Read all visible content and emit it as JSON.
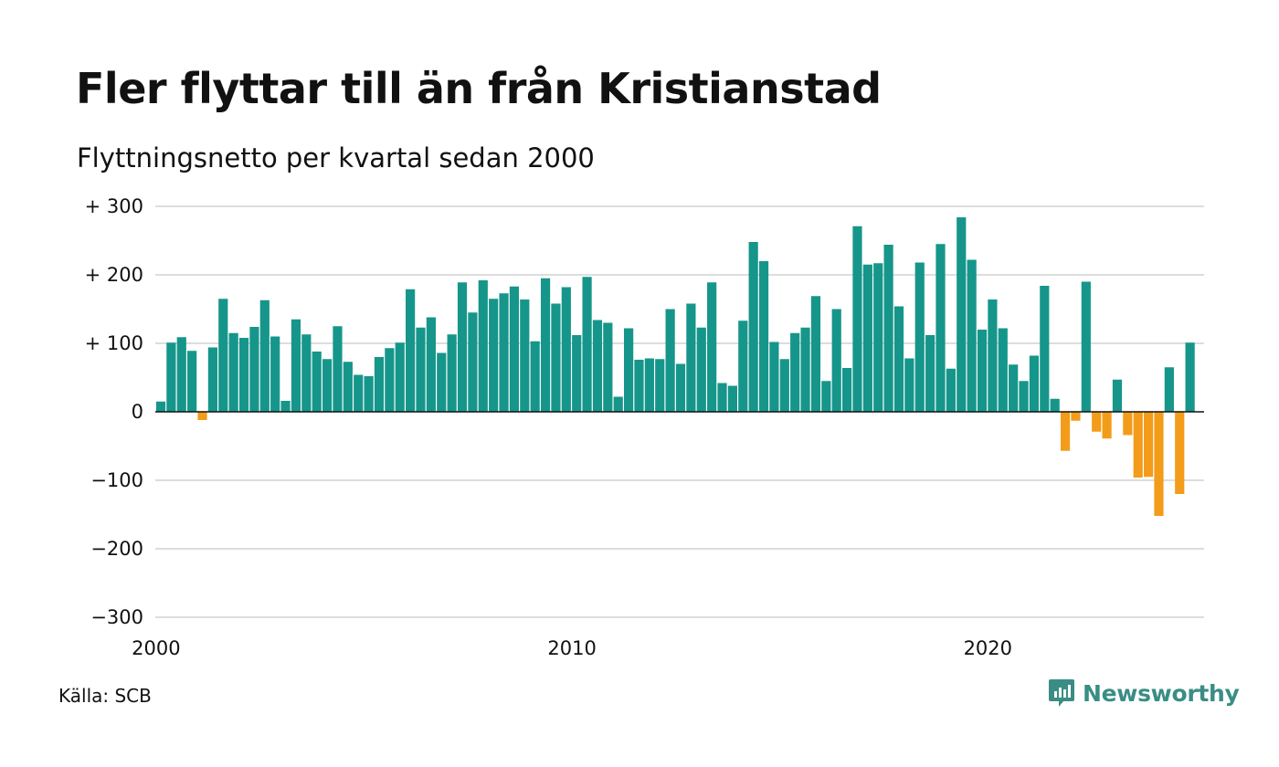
{
  "header": {
    "title": "Fler flyttar till än från Kristianstad",
    "subtitle": "Flyttningsnetto per kvartal sedan 2000"
  },
  "footer": {
    "source": "Källa: SCB",
    "brand": "Newsworthy"
  },
  "colors": {
    "positive": "#16968a",
    "negative": "#f39c1a",
    "grid": "#dddddd",
    "zero_line": "#111111",
    "brand": "#3a8d84"
  },
  "chart_data": {
    "type": "bar",
    "x_start": "2000 Q1",
    "ylim": [
      -300,
      300
    ],
    "grid": true,
    "y_ticks": [
      {
        "value": 300,
        "label": "+ 300"
      },
      {
        "value": 200,
        "label": "+ 200"
      },
      {
        "value": 100,
        "label": "+ 100"
      },
      {
        "value": 0,
        "label": "0"
      },
      {
        "value": -100,
        "label": "−100"
      },
      {
        "value": -200,
        "label": "−200"
      },
      {
        "value": -300,
        "label": "−300"
      }
    ],
    "x_ticks": [
      {
        "year": 2000,
        "label": "2000"
      },
      {
        "year": 2010,
        "label": "2010"
      },
      {
        "year": 2020,
        "label": "2020"
      }
    ],
    "values": [
      15,
      101,
      109,
      89,
      -12,
      94,
      165,
      115,
      108,
      124,
      163,
      110,
      16,
      135,
      113,
      88,
      77,
      125,
      73,
      54,
      52,
      80,
      93,
      101,
      179,
      123,
      138,
      86,
      113,
      189,
      145,
      192,
      165,
      173,
      183,
      164,
      103,
      195,
      158,
      182,
      112,
      197,
      134,
      130,
      22,
      122,
      76,
      78,
      77,
      150,
      70,
      158,
      123,
      189,
      42,
      38,
      133,
      248,
      220,
      102,
      77,
      115,
      123,
      169,
      45,
      150,
      64,
      271,
      215,
      217,
      244,
      154,
      78,
      218,
      112,
      245,
      63,
      284,
      222,
      120,
      164,
      122,
      69,
      45,
      82,
      184,
      19,
      -57,
      -13,
      190,
      -29,
      -39,
      47,
      -34,
      -96,
      -95,
      -152,
      65,
      -120,
      101
    ]
  }
}
